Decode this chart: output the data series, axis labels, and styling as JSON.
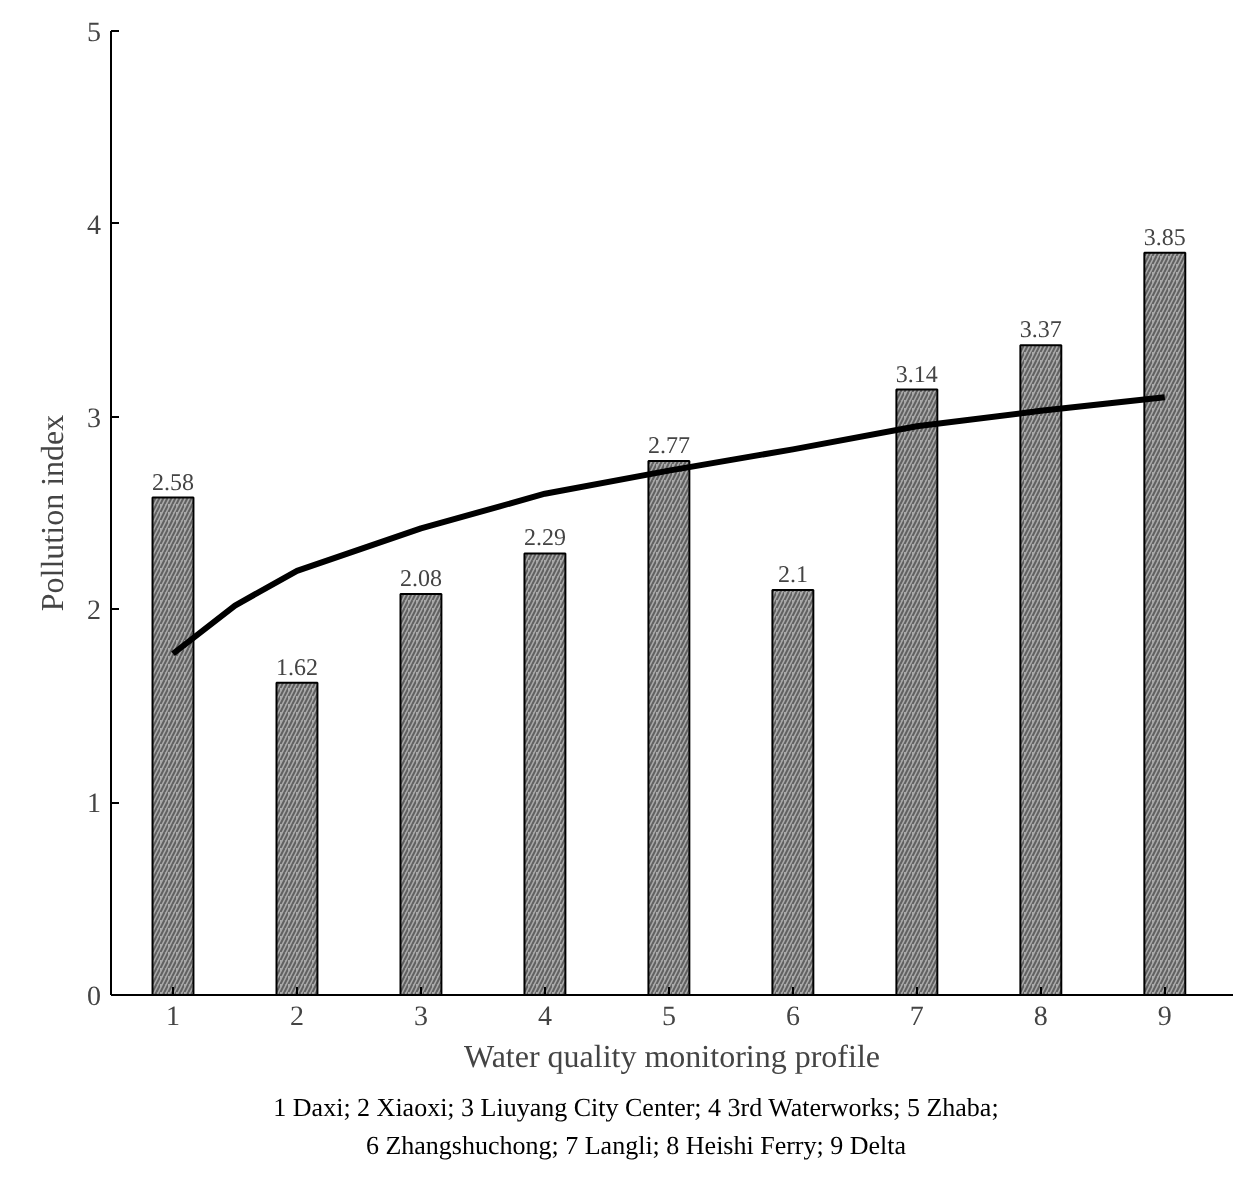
{
  "chart_data": {
    "type": "bar",
    "xlabel": "Water quality monitoring profile",
    "ylabel": "Pollution index",
    "x": [
      1,
      2,
      3,
      4,
      5,
      6,
      7,
      8,
      9
    ],
    "xlim": [
      0.5,
      9.55
    ],
    "xticks": [
      1,
      2,
      3,
      4,
      5,
      6,
      7,
      8,
      9
    ],
    "ylim": [
      0,
      5
    ],
    "yticks": [
      0,
      1,
      2,
      3,
      4,
      5
    ],
    "grid": false,
    "series": [
      {
        "color": "#a8a8a8",
        "values": [
          2.58,
          1.62,
          2.08,
          2.29,
          2.77,
          2.1,
          3.14,
          3.37,
          3.85
        ],
        "value_labels": [
          "2.58",
          "1.62",
          "2.08",
          "2.29",
          "2.77",
          "2.1",
          "3.14",
          "3.37",
          "3.85"
        ]
      },
      {
        "type": "line",
        "color": "#000000",
        "x": [
          1,
          1.5,
          2,
          3,
          4,
          5,
          6,
          7,
          8,
          9
        ],
        "values": [
          1.77,
          2.02,
          2.2,
          2.42,
          2.6,
          2.72,
          2.83,
          2.95,
          3.03,
          3.1
        ]
      }
    ],
    "annotations": [
      "1 Daxi; 2 Xiaoxi; 3 Liuyang City Center; 4 3rd Waterworks; 5 Zhaba;",
      "6 Zhangshuchong; 7 Langli; 8 Heishi Ferry; 9 Delta"
    ]
  }
}
